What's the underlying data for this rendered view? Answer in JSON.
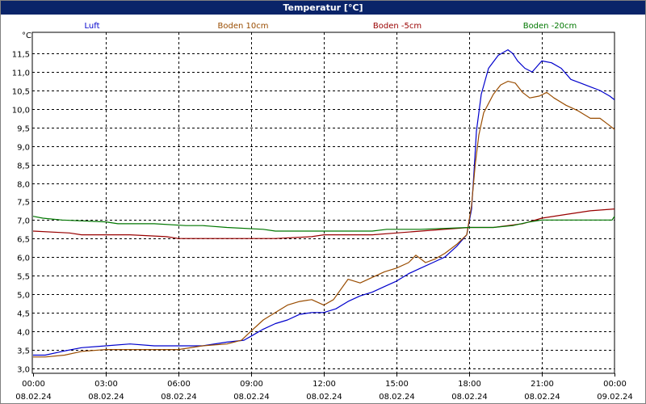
{
  "window": {
    "title": "Temperatur [°C]"
  },
  "chart_data": {
    "type": "line",
    "title": "Temperatur [°C]",
    "ylabel": "°C",
    "ylim": [
      3.0,
      11.75
    ],
    "yticks": [
      "3,0",
      "3,5",
      "4,0",
      "4,5",
      "5,0",
      "5,5",
      "6,0",
      "6,5",
      "7,0",
      "7,5",
      "8,0",
      "8,5",
      "9,0",
      "9,5",
      "10,0",
      "10,5",
      "11,0",
      "11,5"
    ],
    "xlim": [
      0,
      24
    ],
    "xticks": [
      {
        "time": "00:00",
        "date": "08.02.24"
      },
      {
        "time": "03:00",
        "date": "08.02.24"
      },
      {
        "time": "06:00",
        "date": "08.02.24"
      },
      {
        "time": "09:00",
        "date": "08.02.24"
      },
      {
        "time": "12:00",
        "date": "08.02.24"
      },
      {
        "time": "15:00",
        "date": "08.02.24"
      },
      {
        "time": "18:00",
        "date": "08.02.24"
      },
      {
        "time": "21:00",
        "date": "08.02.24"
      },
      {
        "time": "00:00",
        "date": "09.02.24"
      }
    ],
    "grid": true,
    "legend_position": "top",
    "series": [
      {
        "name": "Luft",
        "color": "#0000cc",
        "points": [
          [
            0,
            3.35
          ],
          [
            0.5,
            3.35
          ],
          [
            1.2,
            3.45
          ],
          [
            2,
            3.55
          ],
          [
            3,
            3.6
          ],
          [
            4,
            3.65
          ],
          [
            5,
            3.6
          ],
          [
            6,
            3.6
          ],
          [
            7,
            3.6
          ],
          [
            8,
            3.7
          ],
          [
            8.7,
            3.75
          ],
          [
            9.1,
            3.9
          ],
          [
            9.5,
            4.05
          ],
          [
            10,
            4.2
          ],
          [
            10.5,
            4.3
          ],
          [
            11,
            4.45
          ],
          [
            11.5,
            4.5
          ],
          [
            12,
            4.5
          ],
          [
            12.5,
            4.6
          ],
          [
            13,
            4.8
          ],
          [
            13.5,
            4.95
          ],
          [
            14,
            5.05
          ],
          [
            14.5,
            5.2
          ],
          [
            15,
            5.35
          ],
          [
            15.5,
            5.55
          ],
          [
            16,
            5.7
          ],
          [
            16.5,
            5.85
          ],
          [
            17,
            6.0
          ],
          [
            17.5,
            6.3
          ],
          [
            17.9,
            6.6
          ],
          [
            18.1,
            7.3
          ],
          [
            18.2,
            8.3
          ],
          [
            18.3,
            9.4
          ],
          [
            18.5,
            10.4
          ],
          [
            18.8,
            11.1
          ],
          [
            19.2,
            11.45
          ],
          [
            19.6,
            11.6
          ],
          [
            19.8,
            11.5
          ],
          [
            20,
            11.3
          ],
          [
            20.3,
            11.1
          ],
          [
            20.6,
            11.0
          ],
          [
            21,
            11.3
          ],
          [
            21.4,
            11.25
          ],
          [
            21.8,
            11.1
          ],
          [
            22.2,
            10.8
          ],
          [
            22.6,
            10.7
          ],
          [
            23,
            10.6
          ],
          [
            23.4,
            10.5
          ],
          [
            23.8,
            10.35
          ],
          [
            24,
            10.25
          ]
        ]
      },
      {
        "name": "Boden 10cm",
        "color": "#994c00",
        "points": [
          [
            0,
            3.3
          ],
          [
            0.5,
            3.3
          ],
          [
            1.3,
            3.35
          ],
          [
            2,
            3.45
          ],
          [
            3,
            3.5
          ],
          [
            4,
            3.5
          ],
          [
            5,
            3.5
          ],
          [
            6,
            3.5
          ],
          [
            7,
            3.6
          ],
          [
            8,
            3.65
          ],
          [
            8.6,
            3.75
          ],
          [
            9,
            4.0
          ],
          [
            9.5,
            4.3
          ],
          [
            10,
            4.5
          ],
          [
            10.5,
            4.7
          ],
          [
            11,
            4.8
          ],
          [
            11.5,
            4.85
          ],
          [
            12,
            4.7
          ],
          [
            12.4,
            4.85
          ],
          [
            13,
            5.4
          ],
          [
            13.5,
            5.3
          ],
          [
            14,
            5.45
          ],
          [
            14.5,
            5.6
          ],
          [
            15,
            5.7
          ],
          [
            15.5,
            5.85
          ],
          [
            15.8,
            6.05
          ],
          [
            16.2,
            5.85
          ],
          [
            16.6,
            5.95
          ],
          [
            17,
            6.1
          ],
          [
            17.5,
            6.35
          ],
          [
            17.9,
            6.6
          ],
          [
            18.1,
            7.4
          ],
          [
            18.25,
            8.5
          ],
          [
            18.4,
            9.3
          ],
          [
            18.6,
            9.9
          ],
          [
            19,
            10.4
          ],
          [
            19.3,
            10.65
          ],
          [
            19.6,
            10.75
          ],
          [
            19.9,
            10.7
          ],
          [
            20.2,
            10.45
          ],
          [
            20.5,
            10.3
          ],
          [
            20.9,
            10.35
          ],
          [
            21.2,
            10.45
          ],
          [
            21.5,
            10.3
          ],
          [
            22,
            10.1
          ],
          [
            22.5,
            9.95
          ],
          [
            23,
            9.75
          ],
          [
            23.4,
            9.75
          ],
          [
            23.7,
            9.6
          ],
          [
            24,
            9.45
          ]
        ]
      },
      {
        "name": "Boden -5cm",
        "color": "#990000",
        "points": [
          [
            0,
            6.7
          ],
          [
            1.5,
            6.65
          ],
          [
            2,
            6.6
          ],
          [
            4,
            6.6
          ],
          [
            5.5,
            6.55
          ],
          [
            6,
            6.5
          ],
          [
            8,
            6.5
          ],
          [
            10,
            6.5
          ],
          [
            11.5,
            6.55
          ],
          [
            12,
            6.6
          ],
          [
            14,
            6.6
          ],
          [
            15,
            6.65
          ],
          [
            16,
            6.7
          ],
          [
            18,
            6.8
          ],
          [
            19,
            6.8
          ],
          [
            20.2,
            6.9
          ],
          [
            21,
            7.05
          ],
          [
            22,
            7.15
          ],
          [
            23,
            7.25
          ],
          [
            24,
            7.3
          ]
        ]
      },
      {
        "name": "Boden -20cm",
        "color": "#007700",
        "points": [
          [
            0,
            7.1
          ],
          [
            0.4,
            7.05
          ],
          [
            1.2,
            7.0
          ],
          [
            3,
            6.95
          ],
          [
            3.5,
            6.9
          ],
          [
            5,
            6.9
          ],
          [
            6.3,
            6.85
          ],
          [
            7,
            6.85
          ],
          [
            8,
            6.8
          ],
          [
            9.5,
            6.75
          ],
          [
            10,
            6.7
          ],
          [
            12,
            6.7
          ],
          [
            14,
            6.7
          ],
          [
            14.6,
            6.75
          ],
          [
            16,
            6.75
          ],
          [
            18,
            6.8
          ],
          [
            19,
            6.8
          ],
          [
            19.8,
            6.85
          ],
          [
            20.5,
            6.95
          ],
          [
            21,
            7.0
          ],
          [
            22,
            7.0
          ],
          [
            23,
            7.0
          ],
          [
            23.9,
            7.0
          ],
          [
            24,
            7.1
          ]
        ]
      }
    ]
  }
}
